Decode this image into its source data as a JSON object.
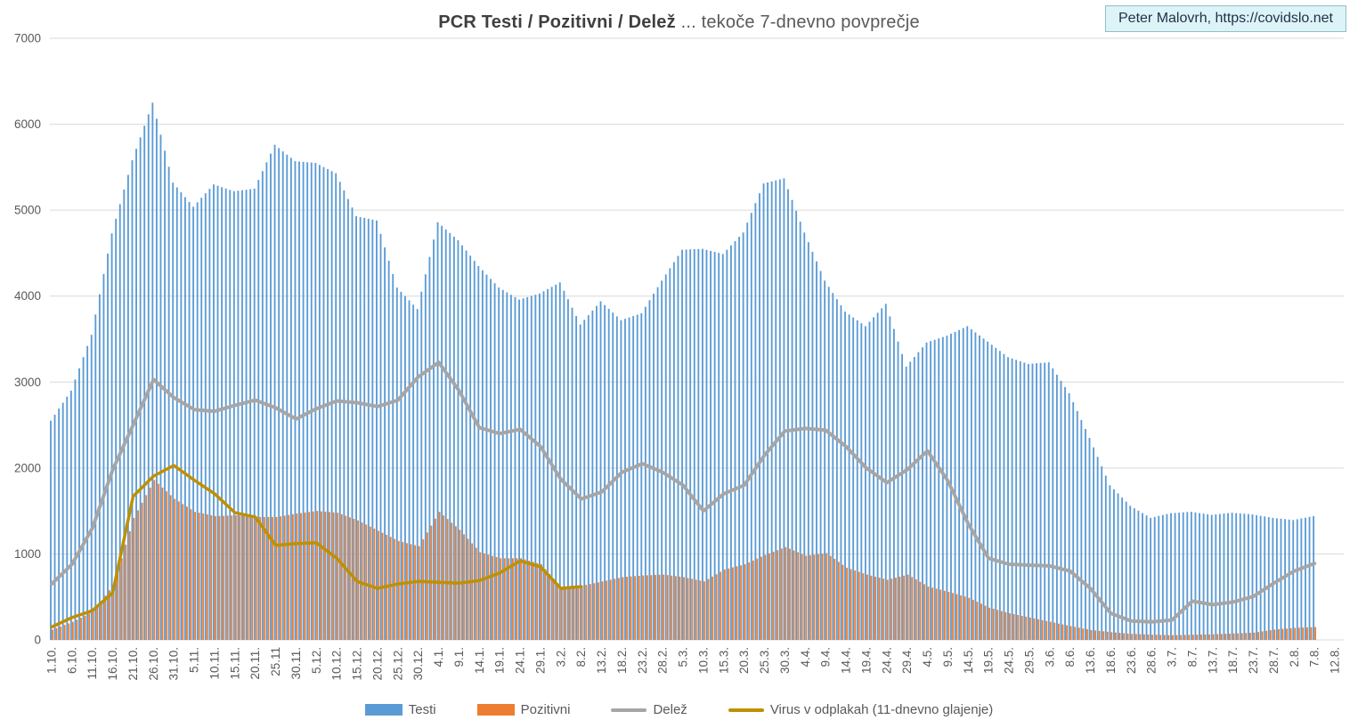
{
  "title": {
    "bold": "PCR Testi / Pozitivni / Delež",
    "regular": "... tekoče 7-dnevno povprečje"
  },
  "badge": {
    "text": "Peter Malovrh, https://covidslo.net"
  },
  "colors": {
    "tests_blue": "#5b9bd5",
    "positives_orange": "#ed7d31",
    "share_gray": "#a6a6a6",
    "wastewater_yellow": "#bf9000",
    "gridline": "#d9d9d9",
    "axis_text": "#595959",
    "badge_fill": "#dcf4f7",
    "badge_border": "#93bec6"
  },
  "legend": {
    "items": [
      {
        "label": "Testi",
        "marker": "bar"
      },
      {
        "label": "Pozitivni",
        "marker": "bar"
      },
      {
        "label": "Delež",
        "marker": "line"
      },
      {
        "label": "Virus v odplakah (11-dnevno glajenje)",
        "marker": "line"
      }
    ]
  },
  "chart_data": {
    "type": "bar",
    "subtype": "daily bars with overlaid lines (combo chart)",
    "title": "PCR Testi / Pozitivni / Delež ... tekoče 7-dnevno povprečje",
    "xlabel": "",
    "ylabel": "",
    "ylim": [
      0,
      7000
    ],
    "y_tick_step": 1000,
    "y_tick_labels": [
      "0",
      "1000",
      "2000",
      "3000",
      "4000",
      "5000",
      "6000",
      "7000"
    ],
    "grid": "horizontal",
    "legend_position": "bottom-center",
    "x_label_rotation_deg": 90,
    "tick_interval_days": 5,
    "categories": [
      "1.10.",
      "6.10.",
      "11.10.",
      "16.10.",
      "21.10.",
      "26.10.",
      "31.10.",
      "5.11.",
      "10.11.",
      "15.11.",
      "20.11.",
      "25.11",
      "30.11.",
      "5.12.",
      "10.12.",
      "15.12.",
      "20.12.",
      "25.12.",
      "30.12.",
      "4.1.",
      "9.1.",
      "14.1.",
      "19.1.",
      "24.1.",
      "29.1.",
      "3.2.",
      "8.2.",
      "13.2.",
      "18.2.",
      "23.2.",
      "28.2.",
      "5.3.",
      "10.3.",
      "15.3.",
      "20.3.",
      "25.3.",
      "30.3.",
      "4.4.",
      "9.4.",
      "14.4.",
      "19.4.",
      "24.4.",
      "29.4.",
      "4.5.",
      "9.5.",
      "14.5.",
      "19.5.",
      "24.5.",
      "29.5.",
      "3.6.",
      "8.6.",
      "13.6.",
      "18.6.",
      "23.6.",
      "28.6.",
      "3.7.",
      "8.7.",
      "13.7.",
      "18.7.",
      "23.7.",
      "28.7.",
      "2.8.",
      "7.8.",
      "12.8."
    ],
    "series": [
      {
        "name": "Testi",
        "type": "bar",
        "color": "#5b9bd5",
        "values": [
          2550,
          2900,
          3550,
          4730,
          5580,
          6250,
          5320,
          5040,
          5300,
          5220,
          5250,
          5760,
          5570,
          5550,
          5430,
          4930,
          4880,
          4100,
          3850,
          4860,
          4650,
          4350,
          4100,
          3960,
          4030,
          4160,
          3670,
          3940,
          3720,
          3800,
          4180,
          4540,
          4550,
          4490,
          4740,
          5310,
          5370,
          4740,
          4180,
          3820,
          3650,
          3910,
          3180,
          3460,
          3540,
          3650,
          3470,
          3290,
          3210,
          3230,
          2870,
          2350,
          1800,
          1560,
          1420,
          1475,
          1490,
          1455,
          1480,
          1460,
          1420,
          1395,
          1440,
          null
        ]
      },
      {
        "name": "Pozitivni",
        "type": "bar",
        "color": "#ed7d31",
        "values": [
          120,
          210,
          330,
          640,
          1420,
          1860,
          1640,
          1490,
          1440,
          1450,
          1430,
          1430,
          1470,
          1500,
          1480,
          1390,
          1270,
          1150,
          1090,
          1490,
          1280,
          1020,
          950,
          950,
          880,
          600,
          630,
          680,
          730,
          750,
          760,
          730,
          680,
          820,
          880,
          990,
          1080,
          980,
          1010,
          840,
          760,
          700,
          760,
          620,
          560,
          490,
          375,
          310,
          260,
          210,
          160,
          115,
          90,
          70,
          60,
          55,
          60,
          65,
          75,
          85,
          120,
          140,
          150,
          null
        ]
      },
      {
        "name": "Delež",
        "type": "line",
        "color": "#a6a6a6",
        "stroke_width": 4,
        "values": [
          650,
          880,
          1300,
          1980,
          2500,
          3030,
          2820,
          2680,
          2660,
          2730,
          2790,
          2700,
          2570,
          2690,
          2780,
          2760,
          2715,
          2790,
          3060,
          3230,
          2900,
          2470,
          2400,
          2450,
          2250,
          1870,
          1640,
          1720,
          1950,
          2050,
          1950,
          1800,
          1500,
          1700,
          1800,
          2150,
          2430,
          2460,
          2440,
          2250,
          2000,
          1830,
          1980,
          2200,
          1850,
          1350,
          950,
          880,
          870,
          860,
          800,
          600,
          310,
          220,
          210,
          230,
          450,
          410,
          440,
          505,
          660,
          800,
          890,
          null
        ]
      },
      {
        "name": "Virus v odplakah (11-dnevno glajenje)",
        "type": "line",
        "color": "#bf9000",
        "stroke_width": 3.5,
        "values": [
          150,
          260,
          340,
          550,
          1670,
          1905,
          2030,
          1860,
          1700,
          1480,
          1430,
          1100,
          1120,
          1130,
          950,
          680,
          600,
          650,
          680,
          670,
          660,
          690,
          780,
          920,
          850,
          600,
          620,
          null,
          null,
          null,
          null,
          null,
          null,
          null,
          null,
          null,
          null,
          null,
          null,
          null,
          null,
          null,
          null,
          null,
          null,
          null,
          null,
          null,
          null,
          null,
          null,
          null,
          null,
          null,
          null,
          null,
          null,
          null,
          null,
          null,
          null,
          null,
          null,
          null
        ]
      }
    ]
  }
}
